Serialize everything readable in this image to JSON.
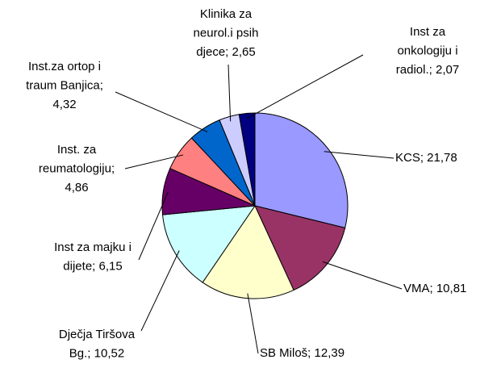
{
  "chart_data": {
    "type": "pie",
    "categories": [
      "KCS",
      "VMA",
      "SB Miloš",
      "Dječja Tiršova Bg.",
      "Inst za majku i dijete",
      "Inst. za reumatologiju",
      "Inst.za ortop i traum Banjica",
      "Klinika za neurol.i psih djece",
      "Inst za onkologiju i radiol."
    ],
    "values": [
      21.78,
      10.81,
      12.39,
      10.52,
      6.15,
      4.86,
      4.32,
      2.65,
      2.07
    ],
    "value_labels": [
      [
        "KCS; 21,78"
      ],
      [
        "VMA; 10,81"
      ],
      [
        "SB Miloš; 12,39"
      ],
      [
        "Dječja Tiršova",
        "Bg.; 10,52"
      ],
      [
        "Inst za majku i",
        "dijete; 6,15"
      ],
      [
        "Inst. za",
        "reumatologiju;",
        "4,86"
      ],
      [
        "Inst.za ortop i",
        "traum Banjica;",
        "4,32"
      ],
      [
        "Klinika za",
        "neurol.i psih",
        "djece; 2,65"
      ],
      [
        "Inst za",
        "onkologiju i",
        "radiol.; 2,07"
      ]
    ],
    "colors": [
      "#9999ff",
      "#993366",
      "#ffffcc",
      "#ccffff",
      "#660066",
      "#ff8080",
      "#0066cc",
      "#ccccff",
      "#000080"
    ]
  }
}
